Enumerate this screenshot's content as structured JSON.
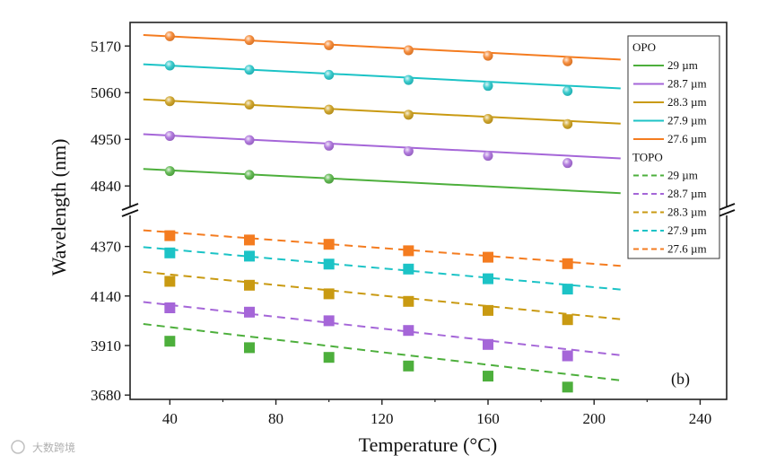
{
  "chart_data": {
    "type": "scatter",
    "panel_label": "(b)",
    "xlabel": "Temperature (°C)",
    "ylabel": "Wavelength (nm)",
    "xlim": [
      25,
      250
    ],
    "x_ticks": [
      "40",
      "80",
      "120",
      "160",
      "200",
      "240"
    ],
    "upper_segment": {
      "ylim": [
        4760,
        5215
      ],
      "ticks": [
        "4840",
        "4950",
        "5060",
        "5170"
      ]
    },
    "lower_segment": {
      "ylim": [
        3660,
        4460
      ],
      "ticks": [
        "3680",
        "3910",
        "4140",
        "4370"
      ]
    },
    "line_x": [
      30,
      210
    ],
    "groups": [
      {
        "title": "OPO",
        "marker": "circle",
        "line_style": "solid",
        "series": [
          {
            "name": "29 µm",
            "color": "#4daf3c",
            "x": [
              40,
              70,
              100
            ],
            "y": [
              4875,
              4866,
              4857
            ],
            "line_y": [
              4880,
              4823
            ]
          },
          {
            "name": "28.7 µm",
            "color": "#a566d8",
            "x": [
              40,
              70,
              100,
              130,
              160,
              190
            ],
            "y": [
              4958,
              4948,
              4935,
              4922,
              4911,
              4894
            ],
            "line_y": [
              4962,
              4905
            ]
          },
          {
            "name": "28.3 µm",
            "color": "#c99a12",
            "x": [
              40,
              70,
              100,
              130,
              160,
              190
            ],
            "y": [
              5040,
              5032,
              5020,
              5008,
              4998,
              4986
            ],
            "line_y": [
              5044,
              4987
            ]
          },
          {
            "name": "27.9 µm",
            "color": "#1cc3c6",
            "x": [
              40,
              70,
              100,
              130,
              160,
              190
            ],
            "y": [
              5124,
              5114,
              5102,
              5090,
              5076,
              5064
            ],
            "line_y": [
              5127,
              5070
            ]
          },
          {
            "name": "27.6 µm",
            "color": "#f47c20",
            "x": [
              40,
              70,
              100,
              130,
              160,
              190
            ],
            "y": [
              5193,
              5184,
              5172,
              5160,
              5147,
              5134
            ],
            "line_y": [
              5196,
              5138
            ]
          }
        ]
      },
      {
        "title": "TOPO",
        "marker": "square",
        "line_style": "dashed",
        "series": [
          {
            "name": "29 µm",
            "color": "#4daf3c",
            "x": [
              40,
              70,
              100,
              130,
              160,
              190
            ],
            "y": [
              3930,
              3900,
              3855,
              3815,
              3768,
              3717
            ],
            "line_y": [
              4010,
              3748
            ]
          },
          {
            "name": "28.7 µm",
            "color": "#a566d8",
            "x": [
              40,
              70,
              100,
              130,
              160,
              190
            ],
            "y": [
              4085,
              4065,
              4025,
              3980,
              3915,
              3862
            ],
            "line_y": [
              4112,
              3865
            ]
          },
          {
            "name": "28.3 µm",
            "color": "#c99a12",
            "x": [
              40,
              70,
              100,
              130,
              160,
              190
            ],
            "y": [
              4208,
              4190,
              4150,
              4115,
              4073,
              4030
            ],
            "line_y": [
              4252,
              4032
            ]
          },
          {
            "name": "27.9 µm",
            "color": "#1cc3c6",
            "x": [
              40,
              70,
              100,
              130,
              160,
              190
            ],
            "y": [
              4340,
              4325,
              4288,
              4265,
              4220,
              4172
            ],
            "line_y": [
              4367,
              4170
            ]
          },
          {
            "name": "27.6 µm",
            "color": "#f47c20",
            "x": [
              40,
              70,
              100,
              130,
              160,
              190
            ],
            "y": [
              4420,
              4400,
              4380,
              4350,
              4320,
              4290
            ],
            "line_y": [
              4445,
              4280
            ]
          }
        ]
      }
    ]
  },
  "watermark": "大数跨境"
}
